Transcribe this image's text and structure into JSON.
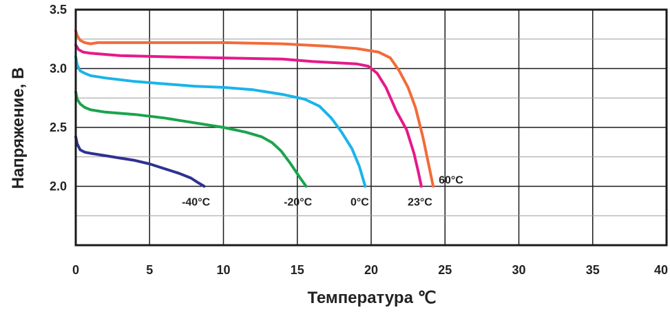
{
  "chart_data": {
    "type": "line",
    "title": "",
    "xlabel": "Температура ℃",
    "ylabel": "Напряжение, В",
    "xlim": [
      0,
      40
    ],
    "ylim": [
      1.5,
      3.5
    ],
    "x_ticks": [
      "0",
      "5",
      "10",
      "15",
      "20",
      "25",
      "30",
      "35",
      "40"
    ],
    "y_ticks": [
      "2.0",
      "2.5",
      "3.0",
      "3.5"
    ],
    "grid": true,
    "series": [
      {
        "name": "-40°C",
        "color": "#2e3192",
        "points": [
          [
            0.0,
            2.42
          ],
          [
            0.1,
            2.36
          ],
          [
            0.3,
            2.31
          ],
          [
            0.6,
            2.29
          ],
          [
            1.0,
            2.28
          ],
          [
            2.0,
            2.26
          ],
          [
            3.0,
            2.24
          ],
          [
            4.0,
            2.22
          ],
          [
            5.0,
            2.19
          ],
          [
            6.0,
            2.15
          ],
          [
            7.0,
            2.11
          ],
          [
            7.8,
            2.07
          ],
          [
            8.3,
            2.03
          ],
          [
            8.7,
            2.0
          ]
        ]
      },
      {
        "name": "-20°C",
        "color": "#1aa44c",
        "points": [
          [
            0.0,
            2.8
          ],
          [
            0.1,
            2.74
          ],
          [
            0.3,
            2.7
          ],
          [
            0.6,
            2.67
          ],
          [
            1.0,
            2.65
          ],
          [
            2.0,
            2.63
          ],
          [
            4.0,
            2.61
          ],
          [
            6.0,
            2.58
          ],
          [
            8.0,
            2.54
          ],
          [
            10.0,
            2.5
          ],
          [
            11.5,
            2.46
          ],
          [
            12.6,
            2.42
          ],
          [
            13.3,
            2.37
          ],
          [
            13.9,
            2.3
          ],
          [
            14.5,
            2.2
          ],
          [
            15.2,
            2.07
          ],
          [
            15.6,
            2.0
          ]
        ]
      },
      {
        "name": "0°C",
        "color": "#1ab4e8",
        "points": [
          [
            0.0,
            3.1
          ],
          [
            0.1,
            3.03
          ],
          [
            0.3,
            2.98
          ],
          [
            0.6,
            2.96
          ],
          [
            1.0,
            2.94
          ],
          [
            2.0,
            2.92
          ],
          [
            4.0,
            2.89
          ],
          [
            6.0,
            2.87
          ],
          [
            8.0,
            2.85
          ],
          [
            10.0,
            2.84
          ],
          [
            12.0,
            2.82
          ],
          [
            14.0,
            2.78
          ],
          [
            15.5,
            2.74
          ],
          [
            16.5,
            2.68
          ],
          [
            17.3,
            2.58
          ],
          [
            18.0,
            2.46
          ],
          [
            18.7,
            2.32
          ],
          [
            19.2,
            2.17
          ],
          [
            19.6,
            2.0
          ]
        ]
      },
      {
        "name": "23°C",
        "color": "#e6198a",
        "points": [
          [
            0.0,
            3.2
          ],
          [
            0.2,
            3.16
          ],
          [
            0.5,
            3.14
          ],
          [
            1.0,
            3.13
          ],
          [
            3.0,
            3.11
          ],
          [
            6.0,
            3.1
          ],
          [
            10.0,
            3.09
          ],
          [
            14.0,
            3.08
          ],
          [
            16.0,
            3.06
          ],
          [
            17.5,
            3.05
          ],
          [
            19.0,
            3.04
          ],
          [
            19.8,
            3.02
          ],
          [
            20.4,
            2.96
          ],
          [
            21.0,
            2.84
          ],
          [
            21.7,
            2.64
          ],
          [
            22.4,
            2.48
          ],
          [
            22.9,
            2.28
          ],
          [
            23.2,
            2.12
          ],
          [
            23.4,
            2.0
          ]
        ]
      },
      {
        "name": "60°C",
        "color": "#f26b3a",
        "points": [
          [
            0.0,
            3.32
          ],
          [
            0.1,
            3.28
          ],
          [
            0.3,
            3.24
          ],
          [
            0.6,
            3.22
          ],
          [
            1.0,
            3.21
          ],
          [
            1.5,
            3.22
          ],
          [
            3.0,
            3.22
          ],
          [
            6.0,
            3.22
          ],
          [
            10.0,
            3.22
          ],
          [
            14.0,
            3.21
          ],
          [
            17.0,
            3.19
          ],
          [
            19.0,
            3.17
          ],
          [
            20.5,
            3.14
          ],
          [
            21.3,
            3.09
          ],
          [
            21.9,
            2.98
          ],
          [
            22.5,
            2.84
          ],
          [
            23.0,
            2.67
          ],
          [
            23.5,
            2.42
          ],
          [
            23.9,
            2.18
          ],
          [
            24.2,
            2.0
          ]
        ]
      }
    ]
  }
}
